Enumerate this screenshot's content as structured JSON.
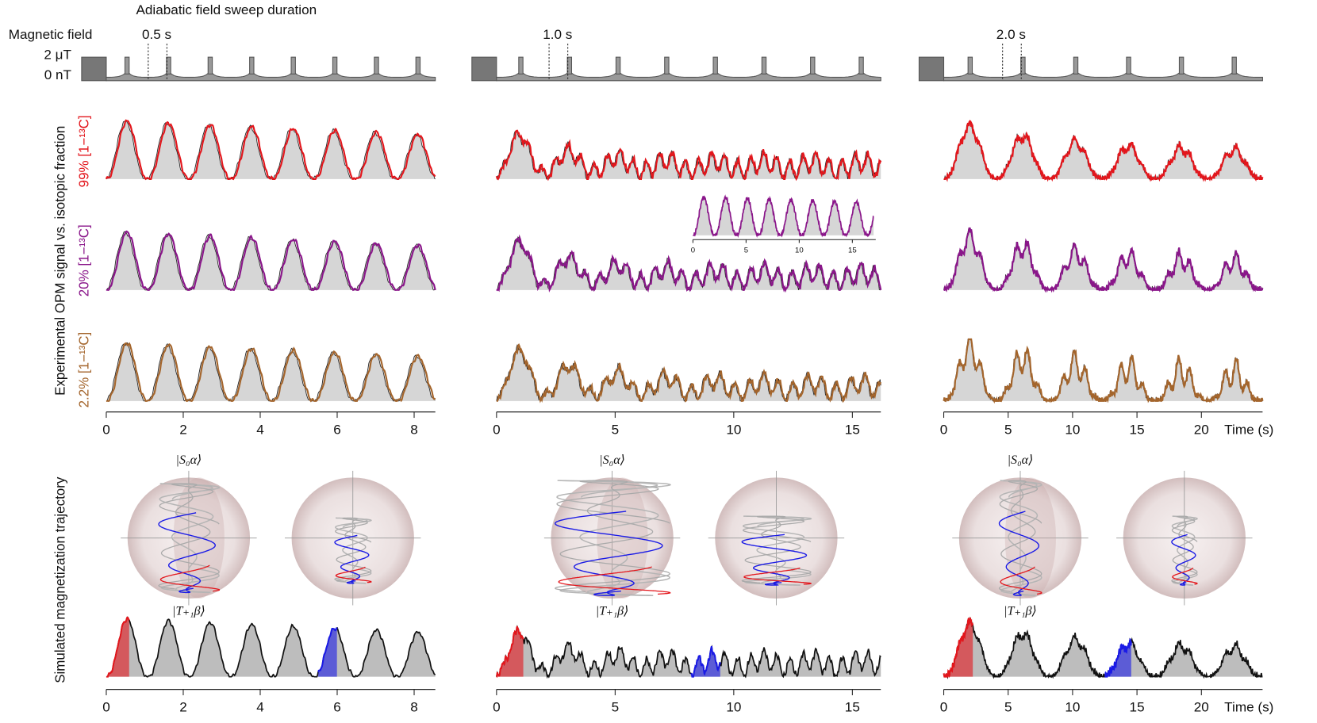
{
  "header": {
    "title": "Adiabatic field sweep duration",
    "field_label": "Magnetic field",
    "field_high": "2 μT",
    "field_low": "0 nT"
  },
  "y_label": "Experimental OPM signal vs. isotopic fraction",
  "sim_label": "Simulated magnetization trajectory",
  "rows": [
    {
      "label": "99% [1−¹³C]",
      "color": "#e3161c"
    },
    {
      "label": "20% [1−¹³C]",
      "color": "#8a168a"
    },
    {
      "label": "2.2% [1−¹³C]",
      "color": "#a4652c"
    }
  ],
  "columns": [
    {
      "duration": "0.5 s",
      "xlim": [
        0,
        8.55
      ],
      "xticks": [
        0,
        2,
        4,
        6,
        8
      ]
    },
    {
      "duration": "1.0 s",
      "xlim": [
        0,
        16.2
      ],
      "xticks": [
        0,
        5,
        10,
        15
      ]
    },
    {
      "duration": "2.0 s",
      "xlim": [
        0,
        24.75
      ],
      "xticks": [
        0,
        5,
        10,
        15,
        20
      ]
    }
  ],
  "inset": {
    "xlim": [
      0,
      17.2
    ],
    "xticks": [
      0,
      5,
      10,
      15
    ]
  },
  "xlabel": "Time (s)",
  "state_top": "|S₀α⟩",
  "state_bottom": "|T₊₁β⟩"
}
